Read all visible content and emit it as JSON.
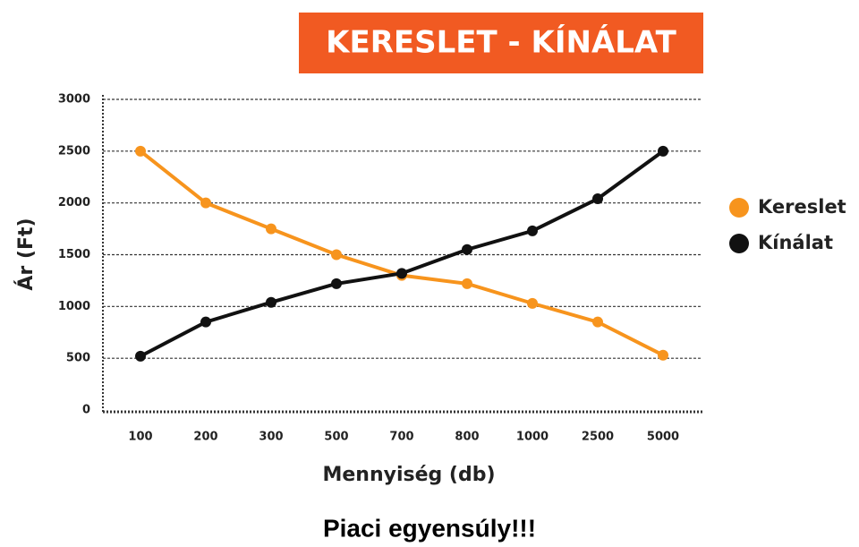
{
  "chart_data": {
    "type": "line",
    "title": "KERESLET - KÍNÁLAT",
    "categories": [
      "100",
      "200",
      "300",
      "500",
      "700",
      "800",
      "1000",
      "2500",
      "5000"
    ],
    "series": [
      {
        "name": "Kereslet",
        "color": "#f7941d",
        "values": [
          2500,
          2000,
          1750,
          1500,
          1300,
          1220,
          1030,
          850,
          530
        ]
      },
      {
        "name": "Kínálat",
        "color": "#111111",
        "values": [
          520,
          850,
          1040,
          1220,
          1320,
          1550,
          1730,
          2040,
          2500
        ]
      }
    ],
    "ylim": [
      0,
      3000
    ],
    "yticks": [
      0,
      500,
      1000,
      1500,
      2000,
      2500,
      3000
    ],
    "grid": true,
    "y_label": "Ár (Ft)",
    "x_label": "Mennyiség (db)",
    "legend": "right"
  },
  "caption": "Piaci egyensúly!!!"
}
